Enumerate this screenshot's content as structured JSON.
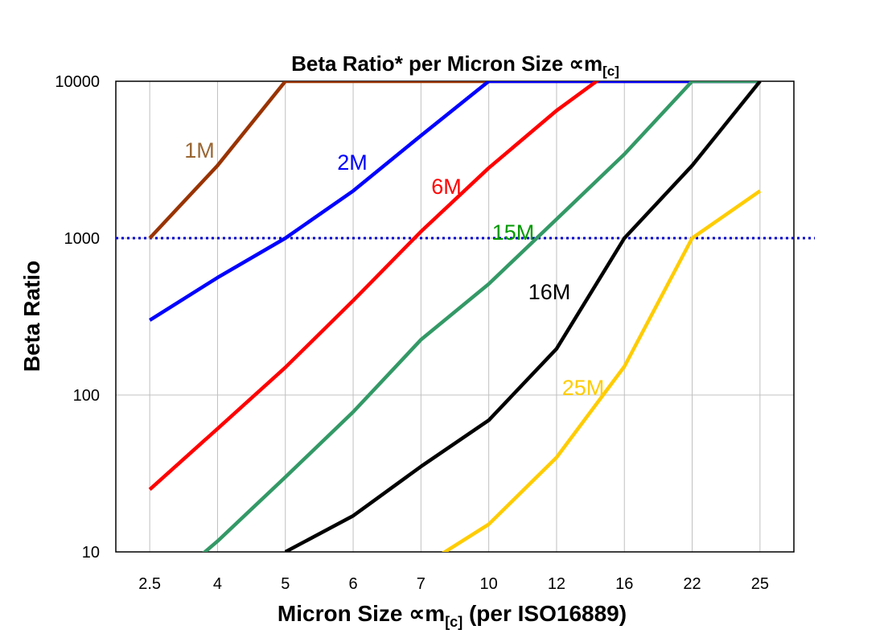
{
  "chart_data": {
    "type": "line",
    "title": "Beta Ratio* per Micron Size ∝m",
    "title_subscript": "[c]",
    "xlabel": "Micron Size ∝m",
    "xlabel_subscript": "[c]",
    "xlabel_suffix": " (per ISO16889)",
    "ylabel": "Beta Ratio",
    "y_scale": "log",
    "ylim": [
      10,
      10000
    ],
    "yticks": [
      "10",
      "100",
      "1000",
      "10000"
    ],
    "categories": [
      "2.5",
      "4",
      "5",
      "6",
      "7",
      "10",
      "12",
      "16",
      "22",
      "25"
    ],
    "grid": true,
    "reference_line": {
      "value": 1000,
      "color": "#0000CC",
      "style": "dotted"
    },
    "series": [
      {
        "name": "1M",
        "color": "#993300",
        "label_color": "#996633",
        "values": [
          1000,
          2900,
          10000,
          10000,
          10000,
          10000,
          10000,
          10000,
          10000,
          10000
        ]
      },
      {
        "name": "2M",
        "color": "#0000FF",
        "label_color": "#0000FF",
        "values": [
          300,
          560,
          1000,
          2000,
          4500,
          10000,
          10000,
          10000,
          10000,
          10000
        ]
      },
      {
        "name": "6M",
        "color": "#FF0000",
        "label_color": "#FF0000",
        "values": [
          25,
          61,
          150,
          400,
          1100,
          2800,
          6500,
          13500,
          null,
          null
        ]
      },
      {
        "name": "15M",
        "color": "#339966",
        "label_color": "#009900",
        "values": [
          5,
          11.7,
          30,
          78,
          225,
          510,
          1320,
          3430,
          10000,
          10000
        ]
      },
      {
        "name": "16M",
        "color": "#000000",
        "label_color": "#000000",
        "values": [
          null,
          null,
          10,
          17,
          35,
          69,
          197,
          1000,
          2900,
          10000
        ]
      },
      {
        "name": "25M",
        "color": "#FFCC00",
        "label_color": "#FFCC00",
        "values": [
          null,
          null,
          null,
          null,
          8,
          15,
          40,
          152,
          1000,
          2000
        ]
      }
    ]
  }
}
